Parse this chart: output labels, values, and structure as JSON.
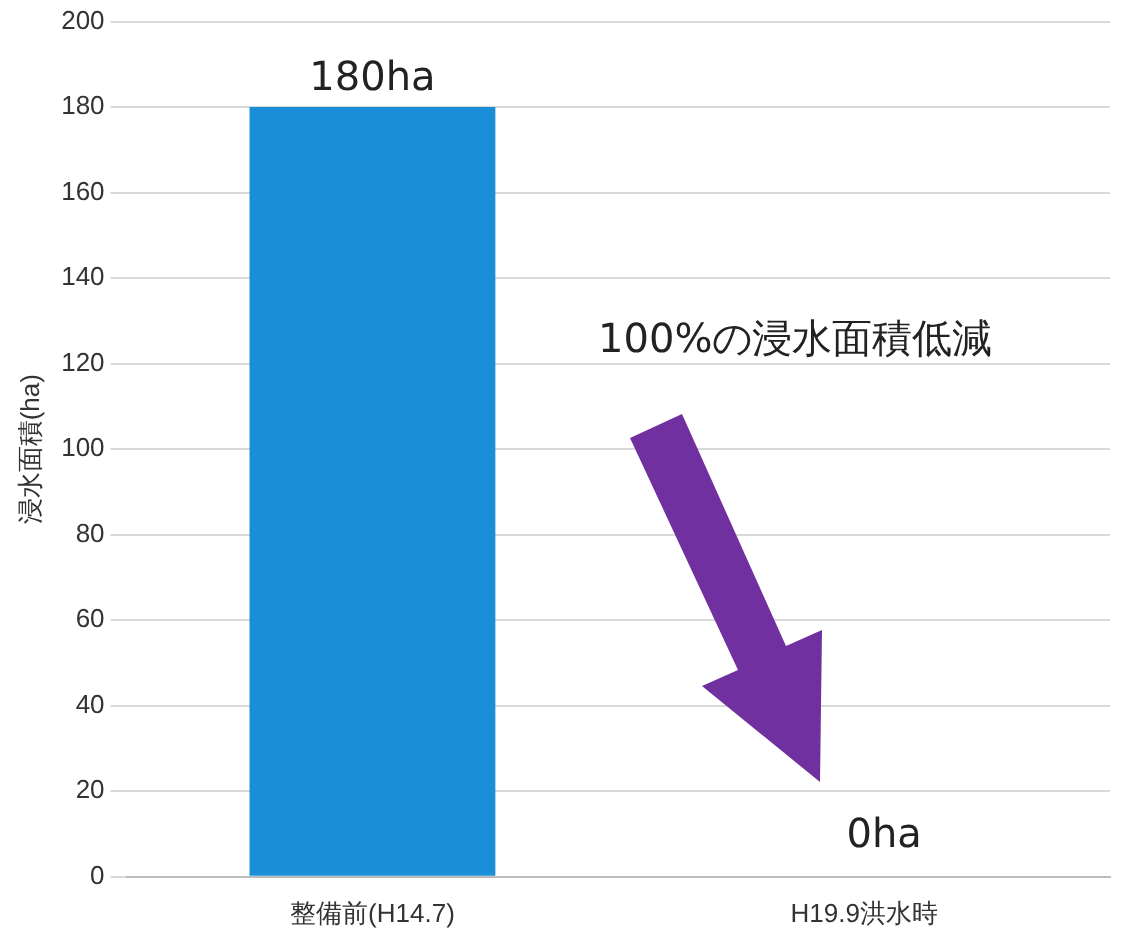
{
  "chart_data": {
    "type": "bar",
    "categories": [
      "整備前(H14.7)",
      "H19.9洪水時"
    ],
    "values": [
      180,
      0
    ],
    "value_labels": [
      "180ha",
      "0ha"
    ],
    "color": "#1a8fd8",
    "ylabel": "浸水面積(ha)",
    "ylim": [
      0,
      200
    ],
    "yticks": [
      0,
      20,
      40,
      60,
      80,
      100,
      120,
      140,
      160,
      180,
      200
    ],
    "grid": "y",
    "annotations": [
      "100%の浸水面積低減"
    ]
  }
}
